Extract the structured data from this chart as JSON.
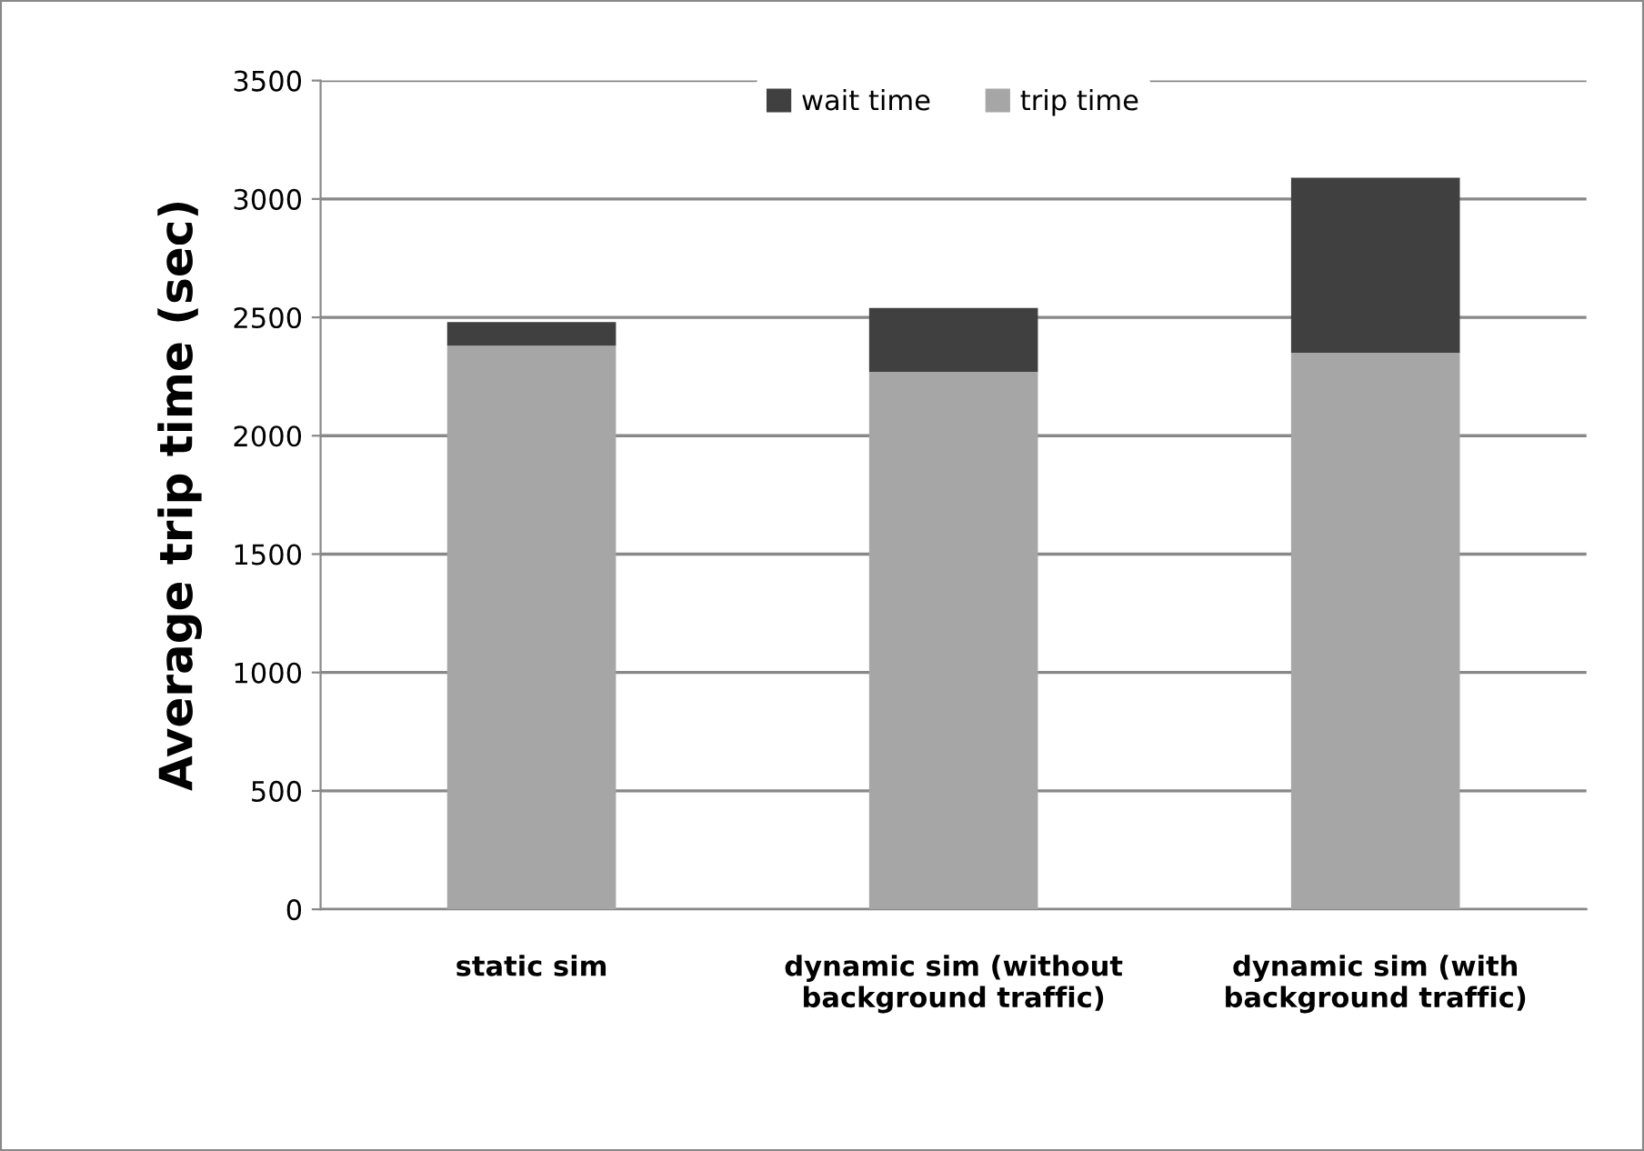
{
  "chart_data": {
    "type": "bar",
    "stacked": true,
    "ylabel": "Average trip time (sec)",
    "categories": [
      "static sim",
      "dynamic sim (without\nbackground traffic)",
      "dynamic sim (with\nbackground traffic)"
    ],
    "series": [
      {
        "name": "trip time",
        "color": "#a6a6a6",
        "values": [
          2380,
          2270,
          2350
        ]
      },
      {
        "name": "wait time",
        "color": "#404040",
        "values": [
          100,
          270,
          740
        ]
      }
    ],
    "ylim": [
      0,
      3500
    ],
    "yticks": [
      0,
      500,
      1000,
      1500,
      2000,
      2500,
      3000,
      3500
    ],
    "grid": "y",
    "legend": "top"
  }
}
